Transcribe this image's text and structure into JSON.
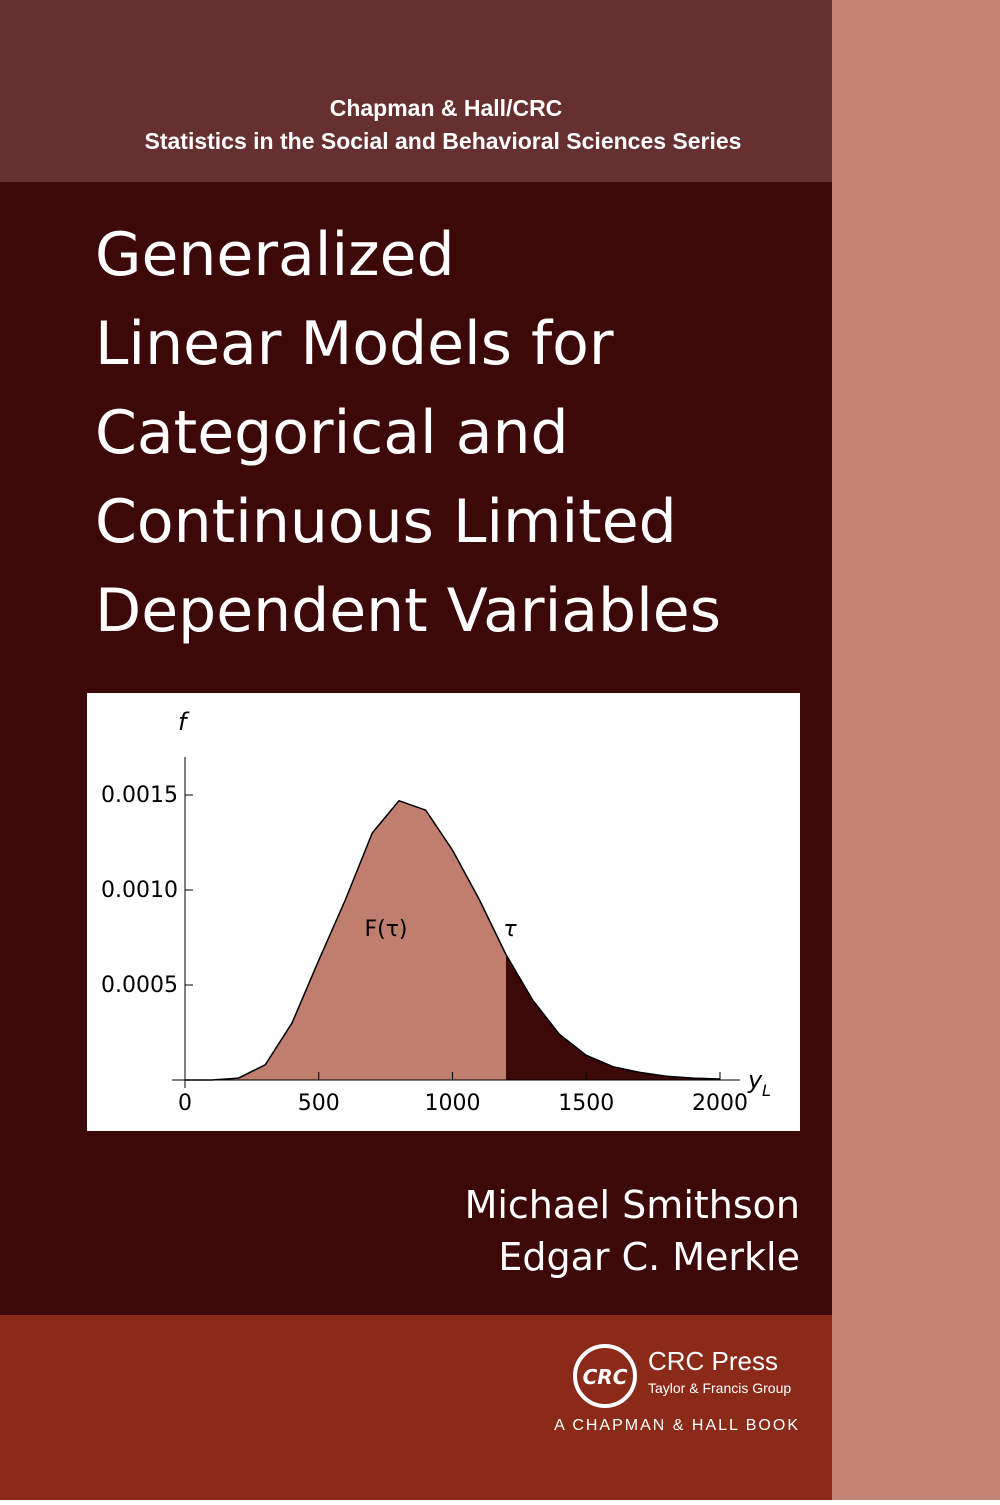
{
  "header": {
    "publisher": "Chapman & Hall/CRC",
    "series": "Statistics in the Social and Behavioral Sciences Series"
  },
  "title": [
    "Generalized",
    "Linear Models for",
    "Categorical and",
    "Continuous Limited",
    "Dependent Variables"
  ],
  "chart_data": {
    "type": "area",
    "y_label": "f",
    "x_label": "y",
    "x_label_sub": "L",
    "annotations": [
      "F(τ)",
      "τ"
    ],
    "x": [
      0,
      100,
      200,
      300,
      400,
      500,
      600,
      700,
      800,
      900,
      1000,
      1100,
      1200,
      1300,
      1400,
      1500,
      1600,
      1700,
      1800,
      1900,
      2000
    ],
    "values": [
      0,
      0,
      1e-05,
      8e-05,
      0.0003,
      0.00063,
      0.00095,
      0.0013,
      0.00147,
      0.00142,
      0.00121,
      0.00095,
      0.00066,
      0.00042,
      0.00024,
      0.00013,
      7e-05,
      4e-05,
      2e-05,
      1e-05,
      5e-06
    ],
    "threshold": 1200,
    "colors": [
      "#c07e6e",
      "#3d0808"
    ],
    "xlim": [
      0,
      2000
    ],
    "xticks": [
      0,
      500,
      1000,
      1500,
      2000
    ],
    "ylim": [
      0,
      0.0017
    ],
    "yticks": [
      {
        "value": 0.0005,
        "label": "0.0005"
      },
      {
        "value": 0.001,
        "label": "0.0010"
      },
      {
        "value": 0.0015,
        "label": "0.0015"
      }
    ]
  },
  "authors": [
    "Michael Smithson",
    "Edgar C. Merkle"
  ],
  "publisher": {
    "logo": "CRC",
    "name": "CRC Press",
    "group": "Taylor & Francis Group",
    "imprint": "A CHAPMAN & HALL BOOK"
  }
}
